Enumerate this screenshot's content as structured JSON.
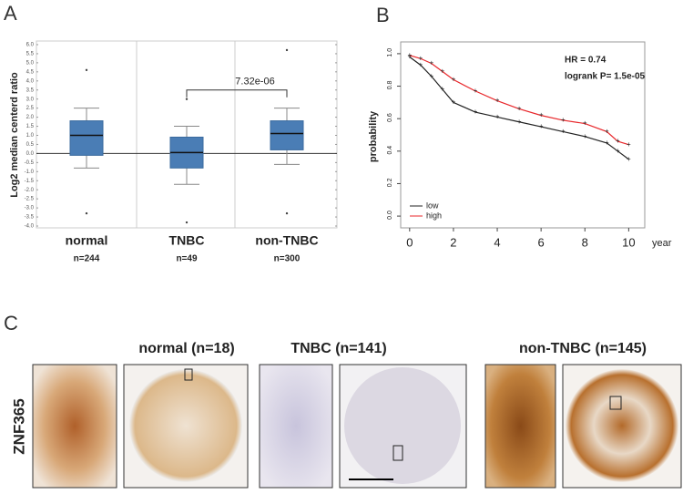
{
  "panel_labels": [
    "A",
    "B",
    "C"
  ],
  "chart_data": [
    {
      "type": "box",
      "ylabel": "Log2 median centerd ratio",
      "categories": [
        "normal",
        "TNBC",
        "non-TNBC"
      ],
      "sublabels": [
        "n=244",
        "n=49",
        "n=300"
      ],
      "color": "#4a7db5",
      "boxes": [
        {
          "whislo": -0.8,
          "q1": -0.1,
          "med": 1.0,
          "q3": 1.8,
          "whishi": 2.5,
          "fliers": [
            4.6,
            -3.3
          ]
        },
        {
          "whislo": -1.7,
          "q1": -0.8,
          "med": 0.05,
          "q3": 0.9,
          "whishi": 1.5,
          "fliers": [
            3.0,
            -3.8
          ]
        },
        {
          "whislo": -0.6,
          "q1": 0.2,
          "med": 1.1,
          "q3": 1.8,
          "whishi": 2.5,
          "fliers": [
            5.7,
            -3.3
          ]
        }
      ],
      "annotation": "7.32e-06",
      "ylim": [
        -4.1,
        6.2
      ],
      "yticks": [
        {
          "value": 6,
          "label": "6.0"
        },
        5.5,
        {
          "value": 5,
          "label": "5.0"
        },
        4.5,
        {
          "value": 4,
          "label": "4.0"
        },
        3.5,
        {
          "value": 3,
          "label": "3.0"
        },
        2.5,
        {
          "value": 2,
          "label": "2.0"
        },
        1.5,
        {
          "value": 1,
          "label": "1.0"
        },
        0.5,
        {
          "value": 0,
          "label": "0.0"
        },
        -0.5,
        {
          "value": -1,
          "label": "-1.0"
        },
        -1.5,
        {
          "value": -2,
          "label": "-2.0"
        },
        -2.5,
        {
          "value": -3,
          "label": "-3.0"
        },
        -3.5,
        {
          "value": -4,
          "label": "-4.0"
        }
      ]
    },
    {
      "type": "line",
      "xlabel": "year",
      "ylabel": "probability",
      "annotations": [
        "HR = 0.74",
        "logrank P= 1.5e-05"
      ],
      "x": [
        0,
        0.5,
        1,
        1.5,
        2,
        3,
        4,
        5,
        6,
        7,
        8,
        9,
        9.5,
        10
      ],
      "series": [
        {
          "name": "low",
          "color": "#222222",
          "values": [
            0.98,
            0.93,
            0.86,
            0.78,
            0.7,
            0.64,
            0.61,
            0.58,
            0.55,
            0.52,
            0.49,
            0.45,
            0.4,
            0.35
          ]
        },
        {
          "name": "high",
          "color": "#e8262a",
          "values": [
            0.99,
            0.97,
            0.94,
            0.89,
            0.84,
            0.77,
            0.71,
            0.66,
            0.62,
            0.59,
            0.57,
            0.52,
            0.46,
            0.44
          ]
        }
      ],
      "legend": "lower left",
      "xlim": [
        -0.2,
        10.4
      ],
      "ylim": [
        -0.05,
        1.05
      ],
      "xticks": [
        0,
        2,
        4,
        6,
        8,
        10
      ],
      "yticks": [
        {
          "value": 0,
          "label": "0.0"
        },
        0.2,
        0.4,
        0.6,
        0.8,
        {
          "value": 1,
          "label": "1.0"
        }
      ]
    }
  ],
  "panel_c": {
    "row_label": "ZNF365",
    "columns": [
      "normal (n=18)",
      "TNBC (n=141)",
      "non-TNBC (n=145)"
    ]
  }
}
